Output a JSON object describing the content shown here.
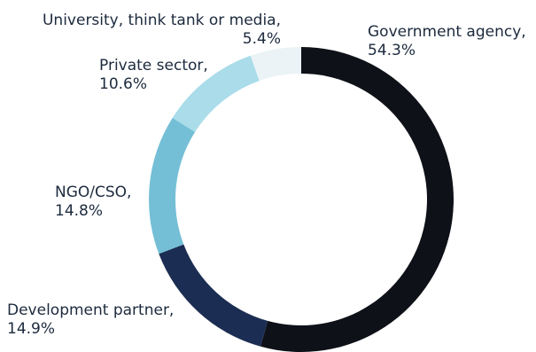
{
  "chart_data": {
    "type": "pie",
    "donut": true,
    "title": "",
    "categories": [
      "Government agency,",
      "Development partner,",
      "NGO/CSO,",
      "Private sector,",
      "University, think tank or media,"
    ],
    "values": [
      54.3,
      14.9,
      14.8,
      10.6,
      5.4
    ],
    "value_labels": [
      "54.3%",
      "14.9%",
      "14.8%",
      "10.6%",
      "5.4%"
    ],
    "colors": [
      "#0f1118",
      "#1b2d52",
      "#74bfd6",
      "#aadcea",
      "#ebf3f6"
    ],
    "start": "12 o'clock",
    "direction": "clockwise",
    "legend": "none"
  }
}
